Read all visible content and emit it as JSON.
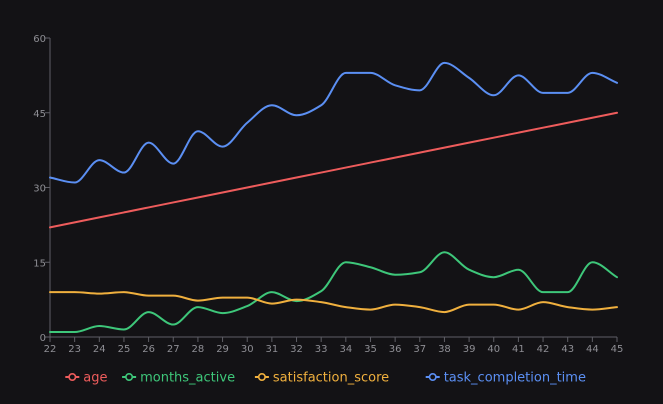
{
  "colors": {
    "background": "#131215",
    "axis": "#5f5f66",
    "tick_text": "#8e8e94"
  },
  "chart_data": {
    "type": "line",
    "title": "",
    "xlabel": "",
    "ylabel": "",
    "grid": false,
    "legend_position": "bottom-center",
    "x": [
      22,
      23,
      24,
      25,
      26,
      27,
      28,
      29,
      30,
      31,
      32,
      33,
      34,
      35,
      36,
      37,
      38,
      39,
      40,
      41,
      42,
      43,
      44,
      45
    ],
    "xlim": [
      22,
      45
    ],
    "ylim": [
      0,
      60
    ],
    "y_ticks": [
      0,
      15,
      30,
      45,
      60
    ],
    "series": [
      {
        "name": "age",
        "color": "#ee5c5c",
        "values": [
          22,
          23,
          24,
          25,
          26,
          27,
          28,
          29,
          30,
          31,
          32,
          33,
          34,
          35,
          36,
          37,
          38,
          39,
          40,
          41,
          42,
          43,
          44,
          45
        ]
      },
      {
        "name": "months_active",
        "color": "#3ec77a",
        "values": [
          1,
          1,
          2.2,
          1.5,
          5,
          2.5,
          6,
          4.8,
          6.2,
          9,
          7.2,
          9.2,
          15,
          14,
          12.5,
          13,
          17,
          13.5,
          12,
          13.5,
          9,
          9,
          15,
          12
        ]
      },
      {
        "name": "satisfaction_score",
        "color": "#f0b03e",
        "values": [
          9,
          9,
          8.7,
          9,
          8.3,
          8.3,
          7.3,
          7.9,
          7.9,
          6.7,
          7.5,
          7,
          6,
          5.5,
          6.5,
          6,
          5,
          6.5,
          6.5,
          5.5,
          7,
          6,
          5.5,
          6
        ]
      },
      {
        "name": "task_completion_time",
        "color": "#5b8ff3",
        "values": [
          32,
          31,
          35.5,
          33,
          39,
          34.8,
          41.3,
          38.2,
          43,
          46.5,
          44.5,
          46.5,
          53,
          53,
          50.5,
          49.5,
          55,
          52,
          48.5,
          52.5,
          49,
          49,
          53,
          51
        ]
      }
    ]
  }
}
